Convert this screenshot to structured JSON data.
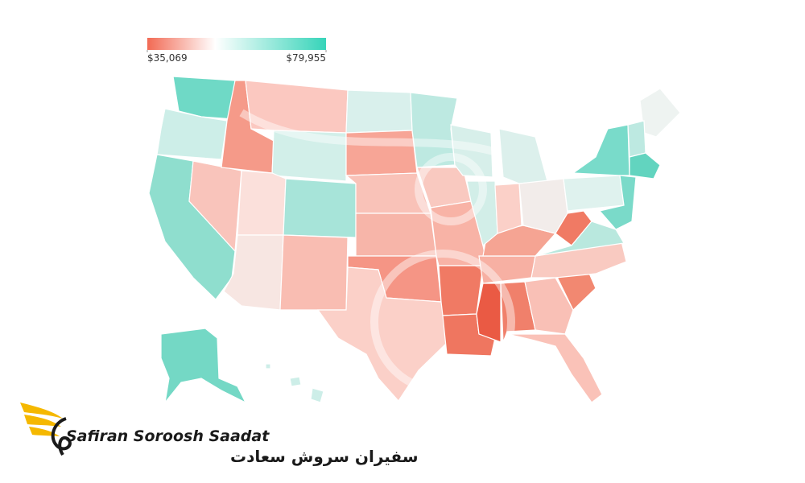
{
  "legend": {
    "min": {
      "value": 35069,
      "label": "$35,069"
    },
    "max": {
      "value": 79955,
      "label": "$79,955"
    }
  },
  "logo": {
    "name_en": "Safiran Soroosh Saadat",
    "name_fa": "سفیران سروش سعادت"
  }
}
